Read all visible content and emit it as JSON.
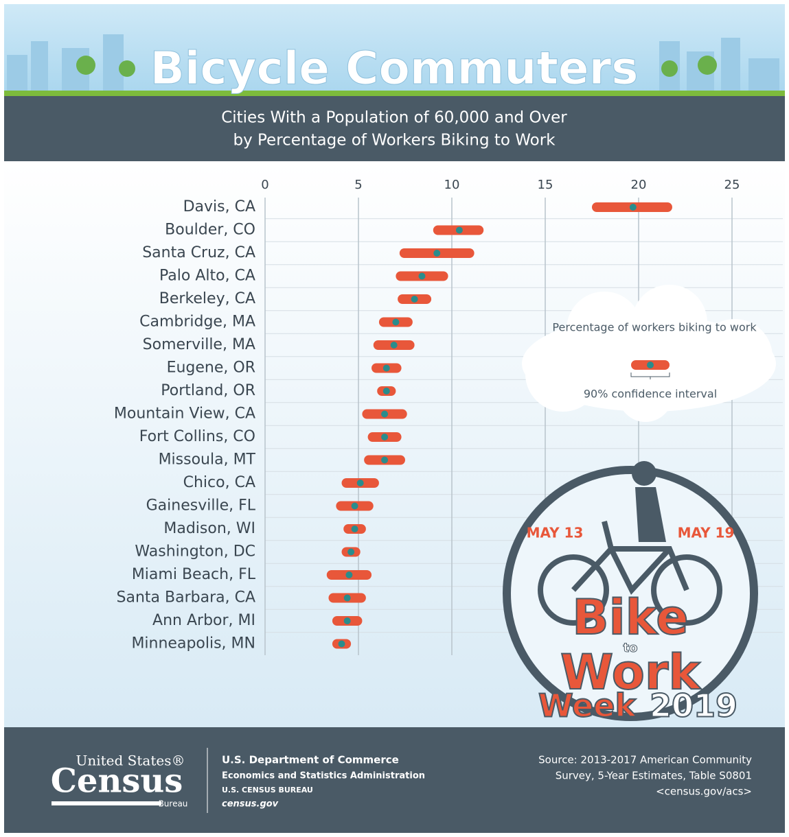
{
  "chart_data": {
    "type": "interval",
    "title": "Bicycle Commuters",
    "subtitle": [
      "Cities With a Population of 60,000 and Over",
      "by Percentage of Workers Biking to Work"
    ],
    "categories": [
      "Davis, CA",
      "Boulder, CO",
      "Santa Cruz, CA",
      "Palo Alto, CA",
      "Berkeley, CA",
      "Cambridge, MA",
      "Somerville, MA",
      "Eugene, OR",
      "Portland, OR",
      "Mountain View, CA",
      "Fort Collins, CO",
      "Missoula, MT",
      "Chico, CA",
      "Gainesville, FL",
      "Madison, WI",
      "Washington, DC",
      "Miami Beach, FL",
      "Santa Barbara, CA",
      "Ann Arbor, MI",
      "Minneapolis, MN"
    ],
    "values": [
      19.7,
      10.4,
      9.2,
      8.4,
      8.0,
      7.0,
      6.9,
      6.5,
      6.5,
      6.4,
      6.4,
      6.4,
      5.1,
      4.8,
      4.8,
      4.6,
      4.5,
      4.4,
      4.4,
      4.1
    ],
    "ci_low": [
      17.5,
      9.0,
      7.2,
      7.0,
      7.1,
      6.1,
      5.8,
      5.7,
      6.0,
      5.2,
      5.5,
      5.3,
      4.1,
      3.8,
      4.2,
      4.1,
      3.3,
      3.4,
      3.6,
      3.6
    ],
    "ci_high": [
      21.8,
      11.7,
      11.2,
      9.8,
      8.9,
      7.9,
      8.0,
      7.3,
      7.0,
      7.6,
      7.3,
      7.5,
      6.1,
      5.8,
      5.4,
      5.1,
      5.7,
      5.4,
      5.2,
      4.6
    ],
    "bar_color": "#e8573a",
    "point_color": "#2a8c8c",
    "xlim": [
      0,
      25
    ],
    "xticks": [
      0,
      5,
      10,
      15,
      20,
      25
    ],
    "grid": true,
    "legend": {
      "estimate": "Percentage of workers biking to work",
      "interval": "90% confidence interval"
    },
    "badge": {
      "left": "MAY 13",
      "right": "MAY 19",
      "line1": "Bike",
      "line2": "to",
      "line3": "Work",
      "line4": "Week",
      "year": "2019"
    },
    "footer": {
      "agency1": "United States®",
      "agency2": "Census",
      "agency3": "Bureau",
      "dept": [
        "U.S. Department of Commerce",
        "Economics and Statistics Administration",
        "U.S. CENSUS BUREAU",
        "census.gov"
      ],
      "source": [
        "Source: 2013-2017 American Community",
        "Survey, 5-Year Estimates, Table S0801",
        "<census.gov/acs>"
      ]
    }
  }
}
